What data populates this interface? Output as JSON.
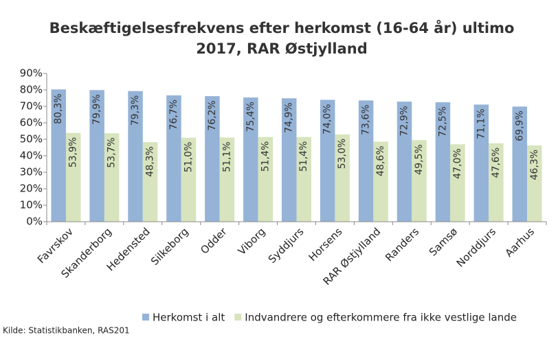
{
  "chart_data": {
    "type": "bar",
    "title": [
      "Beskæftigelsesfrekvens efter herkomst (16-64 år) ultimo",
      "2017, RAR Østjylland"
    ],
    "categories": [
      "Favrskov",
      "Skanderborg",
      "Hedensted",
      "Silkeborg",
      "Odder",
      "Viborg",
      "Syddjurs",
      "Horsens",
      "RAR Østjylland",
      "Randers",
      "Samsø",
      "Norddjurs",
      "Aarhus"
    ],
    "series": [
      {
        "name": "Herkomst i alt",
        "color": "#95b3d7",
        "values": [
          80.3,
          79.9,
          79.3,
          76.7,
          76.2,
          75.4,
          74.9,
          74.0,
          73.6,
          72.9,
          72.5,
          71.1,
          69.9
        ],
        "value_labels": [
          "80,3%",
          "79,9%",
          "79,3%",
          "76,7%",
          "76,2%",
          "75,4%",
          "74,9%",
          "74,0%",
          "73,6%",
          "72,9%",
          "72,5%",
          "71,1%",
          "69,9%"
        ]
      },
      {
        "name": "Indvandrere og efterkommere fra ikke vestlige lande",
        "color": "#d7e4bd",
        "values": [
          53.9,
          53.7,
          48.3,
          51.0,
          51.1,
          51.4,
          51.4,
          53.0,
          48.6,
          49.5,
          47.0,
          47.6,
          46.3
        ],
        "value_labels": [
          "53,9%",
          "53,7%",
          "48,3%",
          "51,0%",
          "51,1%",
          "51,4%",
          "51,4%",
          "53,0%",
          "48,6%",
          "49,5%",
          "47,0%",
          "47,6%",
          "46,3%"
        ]
      }
    ],
    "ylim": [
      0,
      90
    ],
    "yticks": [
      {
        "value": 0,
        "label": "0%"
      },
      {
        "value": 10,
        "label": "10%"
      },
      {
        "value": 20,
        "label": "20%"
      },
      {
        "value": 30,
        "label": "30%"
      },
      {
        "value": 40,
        "label": "40%"
      },
      {
        "value": 50,
        "label": "50%"
      },
      {
        "value": 60,
        "label": "60%"
      },
      {
        "value": 70,
        "label": "70%"
      },
      {
        "value": 80,
        "label": "80%"
      },
      {
        "value": 90,
        "label": "90%"
      }
    ],
    "legend": "bottom",
    "source": "Kilde: Statistikbanken, RAS201"
  }
}
